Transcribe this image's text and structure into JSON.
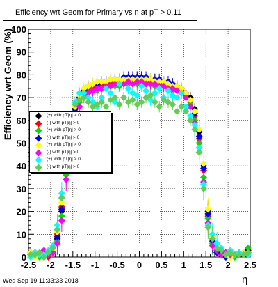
{
  "title": "Efficiency wrt Geom for Primary vs    η at pT > 0.11",
  "footer": {
    "datestamp": "Wed Sep 19 11:33:33 2018"
  },
  "chart_data": {
    "type": "scatter",
    "title": "Efficiency wrt Geom for Primary vs    η at pT > 0.11",
    "xlabel": "η",
    "ylabel": "Efficiency wrt Geom (%)",
    "xlim": [
      -2.5,
      2.5
    ],
    "ylim": [
      0,
      100
    ],
    "grid": true,
    "legend_placement": "left",
    "x_ticks": [
      "-2.5",
      "-2",
      "-1.5",
      "-1",
      "-0.5",
      "0",
      "0.5",
      "1",
      "1.5",
      "2",
      "2.5"
    ],
    "y_ticks": [
      "0",
      "10",
      "20",
      "30",
      "40",
      "50",
      "60",
      "70",
      "80",
      "90",
      "100"
    ],
    "x": [
      -2.45,
      -2.35,
      -2.25,
      -2.15,
      -2.05,
      -1.95,
      -1.85,
      -1.75,
      -1.65,
      -1.55,
      -1.45,
      -1.35,
      -1.25,
      -1.15,
      -1.05,
      -0.95,
      -0.85,
      -0.75,
      -0.65,
      -0.55,
      -0.45,
      -0.35,
      -0.25,
      -0.15,
      -0.05,
      0.05,
      0.15,
      0.25,
      0.35,
      0.45,
      0.55,
      0.65,
      0.75,
      0.85,
      0.95,
      1.05,
      1.15,
      1.25,
      1.35,
      1.45,
      1.55,
      1.65,
      1.75,
      1.85,
      1.95,
      2.05,
      2.15,
      2.25,
      2.35,
      2.45
    ],
    "series": [
      {
        "name": "(+) with pT|η| > 0",
        "color": "#000000",
        "values": [
          2,
          1,
          1,
          0,
          1,
          2,
          8,
          20,
          40,
          55,
          65,
          70,
          73,
          74,
          75,
          76,
          76,
          77,
          77,
          78,
          78,
          78,
          78,
          78,
          79,
          79,
          78,
          78,
          78,
          77,
          77,
          76,
          76,
          75,
          74,
          72,
          70,
          65,
          55,
          40,
          20,
          8,
          2,
          1,
          0,
          1,
          1,
          1,
          2,
          3
        ]
      },
      {
        "name": "(-) with pT|η| > 0",
        "color": "#ff0000",
        "values": [
          1,
          2,
          1,
          1,
          0,
          3,
          10,
          22,
          38,
          52,
          63,
          69,
          72,
          74,
          75,
          75,
          76,
          76,
          77,
          77,
          78,
          78,
          77,
          78,
          78,
          78,
          78,
          77,
          77,
          77,
          76,
          76,
          75,
          74,
          73,
          71,
          68,
          62,
          52,
          38,
          18,
          6,
          2,
          1,
          1,
          0,
          1,
          2,
          1,
          2
        ]
      },
      {
        "name": "(+) with pT|η| > 0",
        "color": "#00dd00",
        "values": [
          2,
          1,
          0,
          1,
          1,
          2,
          7,
          18,
          36,
          50,
          62,
          68,
          71,
          72,
          73,
          73,
          74,
          74,
          75,
          75,
          75,
          76,
          76,
          76,
          76,
          76,
          76,
          76,
          75,
          75,
          75,
          74,
          73,
          73,
          72,
          70,
          67,
          60,
          50,
          35,
          17,
          6,
          2,
          1,
          1,
          1,
          0,
          1,
          2,
          4
        ]
      },
      {
        "name": "(-) with pT|η| > 0",
        "color": "#0000ff",
        "values": [
          1,
          1,
          1,
          0,
          1,
          3,
          9,
          21,
          39,
          53,
          64,
          70,
          73,
          75,
          76,
          76,
          77,
          77,
          78,
          78,
          78,
          79,
          79,
          79,
          79,
          79,
          79,
          78,
          78,
          78,
          77,
          77,
          76,
          75,
          74,
          72,
          69,
          63,
          53,
          39,
          19,
          7,
          2,
          1,
          0,
          1,
          1,
          1,
          1,
          2
        ]
      },
      {
        "name": "(+) with pT|η| > 0",
        "color": "#ffff00",
        "values": [
          2,
          0,
          1,
          1,
          2,
          3,
          11,
          24,
          42,
          56,
          66,
          71,
          74,
          75,
          76,
          77,
          77,
          77,
          78,
          78,
          78,
          78,
          78,
          78,
          78,
          78,
          78,
          78,
          77,
          77,
          77,
          76,
          75,
          75,
          74,
          72,
          69,
          64,
          56,
          41,
          21,
          9,
          3,
          1,
          1,
          0,
          1,
          1,
          2,
          1
        ]
      },
      {
        "name": "(-) with pT|η| > 0",
        "color": "#ff00ff",
        "values": [
          1,
          2,
          1,
          3,
          1,
          2,
          6,
          16,
          34,
          48,
          60,
          66,
          70,
          72,
          73,
          74,
          74,
          75,
          75,
          76,
          76,
          76,
          77,
          76,
          77,
          77,
          76,
          76,
          76,
          75,
          75,
          74,
          74,
          73,
          72,
          70,
          66,
          59,
          48,
          33,
          15,
          5,
          3,
          1,
          2,
          1,
          1,
          1,
          1,
          2
        ]
      },
      {
        "name": "(+) with pT|η| > 0",
        "color": "#00ffff",
        "values": [
          0,
          2,
          1,
          1,
          3,
          5,
          14,
          28,
          46,
          58,
          68,
          72,
          72,
          70,
          68,
          66,
          70,
          74,
          72,
          68,
          76,
          70,
          74,
          72,
          71,
          75,
          73,
          69,
          72,
          74,
          70,
          73,
          71,
          70,
          72,
          66,
          62,
          58,
          48,
          32,
          14,
          10,
          6,
          4,
          1,
          3,
          1,
          2,
          1,
          1
        ]
      },
      {
        "name": "(-) with pT|η| > 0",
        "color": "#66cc55",
        "values": [
          1,
          1,
          2,
          0,
          2,
          4,
          12,
          26,
          44,
          57,
          67,
          69,
          70,
          68,
          66,
          67,
          68,
          66,
          69,
          70,
          67,
          70,
          68,
          69,
          67,
          68,
          70,
          71,
          68,
          66,
          69,
          68,
          67,
          64,
          66,
          64,
          60,
          56,
          46,
          30,
          13,
          8,
          4,
          3,
          1,
          2,
          1,
          1,
          1,
          2
        ]
      }
    ],
    "legend": [
      {
        "label": "(+) with pT|η| > 0",
        "color": "#000000"
      },
      {
        "label": "(-) with pT|η| > 0",
        "color": "#ff0000"
      },
      {
        "label": "(+) with pT|η| > 0",
        "color": "#00dd00"
      },
      {
        "label": "(-) with pT|η| > 0",
        "color": "#0000ff"
      },
      {
        "label": "(+) with pT|η| > 0",
        "color": "#ffff00"
      },
      {
        "label": "(-) with pT|η| > 0",
        "color": "#ff00ff"
      },
      {
        "label": "(+) with pT|η| > 0",
        "color": "#00ffff"
      },
      {
        "label": "(-) with pT|η| > 0",
        "color": "#66cc55"
      }
    ]
  }
}
